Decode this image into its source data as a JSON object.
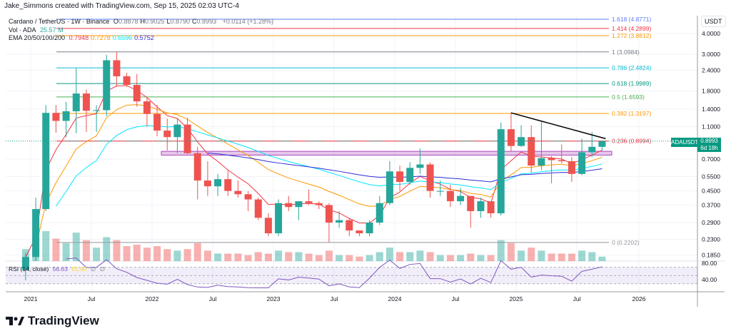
{
  "header": {
    "attribution": "Jake_Simmons created with TradingView.com, Sep 15, 2025 02:03 UTC-4"
  },
  "legend": {
    "symbol": "Cardano / TetherUS · 1W · Binance",
    "ohlc": [
      {
        "k": "O",
        "v": "0.8878"
      },
      {
        "k": "H",
        "v": "0.9025"
      },
      {
        "k": "L",
        "v": "0.8790"
      },
      {
        "k": "C",
        "v": "0.8993"
      }
    ],
    "change": "+0.0114 (+1.28%)",
    "vol_label": "Vol · ADA",
    "vol_value": "25.57 M",
    "ema_label": "EMA 20/50/100/200",
    "ema_values": [
      {
        "v": "0.7948",
        "color": "#f23645"
      },
      {
        "v": "0.7278",
        "color": "#ff9800"
      },
      {
        "v": "0.6596",
        "color": "#00e5ff"
      },
      {
        "v": "0.5752",
        "color": "#2f2fd6"
      }
    ],
    "rsi_label": "RSI (14, close)",
    "rsi_value": "56.63",
    "rsi_ma": "51.40",
    "rsi_na1": "∅",
    "rsi_na2": "∅"
  },
  "price_axis": {
    "currency": "USDT",
    "ticks": [
      "4.0000",
      "3.0000",
      "2.4000",
      "1.8000",
      "1.4000",
      "1.1000",
      "0.7000",
      "0.5500",
      "0.4500",
      "0.3700",
      "0.2900",
      "0.2300",
      "0.1850"
    ]
  },
  "rsi_axis": {
    "ticks": [
      "80.00",
      "40.00"
    ]
  },
  "time_axis": {
    "ticks": [
      "2021",
      "Jul",
      "2022",
      "Jul",
      "2023",
      "Jul",
      "2024",
      "Jul",
      "2025",
      "Jul",
      "2026"
    ]
  },
  "current_price": {
    "symbol": "ADAUSDT",
    "price": "0.8993",
    "countdown": "6d 18h",
    "color": "#089981"
  },
  "fib_levels": [
    {
      "label": "1.618 (4.8771)",
      "price": 4.8771,
      "color": "#5b7cfa"
    },
    {
      "label": "1.414 (4.2899)",
      "price": 4.2899,
      "color": "#f23645"
    },
    {
      "label": "1.272 (3.8812)",
      "price": 3.8812,
      "color": "#ff9800"
    },
    {
      "label": "1 (3.0984)",
      "price": 3.0984,
      "color": "#787b86"
    },
    {
      "label": "0.786 (2.4824)",
      "price": 2.4824,
      "color": "#00bcd4"
    },
    {
      "label": "0.618 (1.9989)",
      "price": 1.9989,
      "color": "#089981"
    },
    {
      "label": "0.5 (1.6593)",
      "price": 1.6593,
      "color": "#4caf50"
    },
    {
      "label": "0.382 (1.3197)",
      "price": 1.3197,
      "color": "#ff9800"
    },
    {
      "label": "0.236 (0.8994)",
      "price": 0.8994,
      "color": "#f23645"
    },
    {
      "label": "0 (0.2202)",
      "price": 0.2202,
      "color": "#9598a1"
    }
  ],
  "support_zone": {
    "low": 0.74,
    "high": 0.78,
    "color": "#ce93d8"
  },
  "trendline": {
    "from": {
      "date": "2024-12",
      "price": 1.33
    },
    "to": {
      "date": "2025-09",
      "price": 0.93
    },
    "color": "#000000"
  },
  "brand": {
    "name": "TradingView"
  },
  "colors": {
    "up": "#26a69a",
    "down": "#ef5350"
  },
  "chart_data": {
    "type": "candlestick",
    "scale": "log",
    "ylim": [
      0.18,
      5.0
    ],
    "grid": true,
    "interval_drawn": "monthly (approx.)",
    "dates": [
      "2020-12",
      "2021-01",
      "2021-02",
      "2021-03",
      "2021-04",
      "2021-05",
      "2021-06",
      "2021-07",
      "2021-08",
      "2021-09",
      "2021-10",
      "2021-11",
      "2021-12",
      "2022-01",
      "2022-02",
      "2022-03",
      "2022-04",
      "2022-05",
      "2022-06",
      "2022-07",
      "2022-08",
      "2022-09",
      "2022-10",
      "2022-11",
      "2022-12",
      "2023-01",
      "2023-02",
      "2023-03",
      "2023-04",
      "2023-05",
      "2023-06",
      "2023-07",
      "2023-08",
      "2023-09",
      "2023-10",
      "2023-11",
      "2023-12",
      "2024-01",
      "2024-02",
      "2024-03",
      "2024-04",
      "2024-05",
      "2024-06",
      "2024-07",
      "2024-08",
      "2024-09",
      "2024-10",
      "2024-11",
      "2024-12",
      "2025-01",
      "2025-02",
      "2025-03",
      "2025-04",
      "2025-05",
      "2025-06",
      "2025-07",
      "2025-08",
      "2025-09"
    ],
    "ohlc": [
      [
        0.15,
        0.19,
        0.13,
        0.18
      ],
      [
        0.18,
        0.41,
        0.17,
        0.35
      ],
      [
        0.35,
        1.48,
        0.34,
        1.33
      ],
      [
        1.33,
        1.48,
        1.01,
        1.19
      ],
      [
        1.19,
        1.55,
        0.95,
        1.36
      ],
      [
        1.36,
        2.47,
        1.0,
        1.74
      ],
      [
        1.74,
        1.84,
        1.02,
        1.37
      ],
      [
        1.37,
        1.48,
        1.02,
        1.38
      ],
      [
        1.38,
        2.97,
        1.27,
        2.76
      ],
      [
        2.76,
        3.1,
        1.91,
        2.21
      ],
      [
        2.21,
        2.32,
        1.91,
        1.96
      ],
      [
        1.96,
        2.28,
        1.45,
        1.56
      ],
      [
        1.56,
        1.66,
        1.1,
        1.31
      ],
      [
        1.31,
        1.49,
        0.96,
        1.04
      ],
      [
        1.04,
        1.23,
        0.79,
        0.95
      ],
      [
        0.95,
        1.24,
        0.76,
        1.13
      ],
      [
        1.13,
        1.24,
        0.75,
        0.76
      ],
      [
        0.76,
        0.83,
        0.4,
        0.52
      ],
      [
        0.52,
        0.68,
        0.42,
        0.48
      ],
      [
        0.48,
        0.57,
        0.42,
        0.53
      ],
      [
        0.53,
        0.6,
        0.42,
        0.45
      ],
      [
        0.45,
        0.52,
        0.41,
        0.43
      ],
      [
        0.43,
        0.45,
        0.34,
        0.4
      ],
      [
        0.4,
        0.41,
        0.3,
        0.31
      ],
      [
        0.31,
        0.33,
        0.24,
        0.25
      ],
      [
        0.25,
        0.4,
        0.24,
        0.38
      ],
      [
        0.38,
        0.42,
        0.34,
        0.36
      ],
      [
        0.36,
        0.39,
        0.3,
        0.39
      ],
      [
        0.39,
        0.46,
        0.37,
        0.38
      ],
      [
        0.38,
        0.39,
        0.35,
        0.37
      ],
      [
        0.37,
        0.38,
        0.22,
        0.29
      ],
      [
        0.29,
        0.34,
        0.27,
        0.3
      ],
      [
        0.3,
        0.31,
        0.24,
        0.26
      ],
      [
        0.26,
        0.26,
        0.24,
        0.25
      ],
      [
        0.25,
        0.3,
        0.24,
        0.29
      ],
      [
        0.29,
        0.42,
        0.28,
        0.38
      ],
      [
        0.38,
        0.68,
        0.37,
        0.59
      ],
      [
        0.59,
        0.64,
        0.45,
        0.51
      ],
      [
        0.51,
        0.67,
        0.49,
        0.62
      ],
      [
        0.62,
        0.81,
        0.57,
        0.65
      ],
      [
        0.65,
        0.67,
        0.41,
        0.45
      ],
      [
        0.45,
        0.52,
        0.42,
        0.45
      ],
      [
        0.45,
        0.49,
        0.36,
        0.39
      ],
      [
        0.39,
        0.47,
        0.37,
        0.42
      ],
      [
        0.42,
        0.42,
        0.27,
        0.34
      ],
      [
        0.34,
        0.41,
        0.31,
        0.39
      ],
      [
        0.39,
        0.39,
        0.31,
        0.33
      ],
      [
        0.33,
        1.16,
        0.32,
        1.06
      ],
      [
        1.06,
        1.33,
        0.78,
        0.84
      ],
      [
        0.84,
        1.12,
        0.83,
        0.95
      ],
      [
        0.95,
        1.12,
        0.58,
        0.64
      ],
      [
        0.64,
        1.17,
        0.6,
        0.71
      ],
      [
        0.71,
        0.73,
        0.5,
        0.69
      ],
      [
        0.69,
        0.86,
        0.66,
        0.68
      ],
      [
        0.68,
        0.72,
        0.51,
        0.57
      ],
      [
        0.57,
        0.93,
        0.56,
        0.77
      ],
      [
        0.77,
        1.02,
        0.72,
        0.83
      ],
      [
        0.83,
        0.9025,
        0.79,
        0.8993
      ]
    ],
    "volume_relative": [
      40,
      70,
      100,
      75,
      60,
      95,
      70,
      45,
      80,
      70,
      50,
      55,
      45,
      50,
      40,
      35,
      40,
      60,
      35,
      25,
      25,
      25,
      20,
      30,
      25,
      35,
      30,
      30,
      25,
      20,
      35,
      20,
      20,
      15,
      20,
      30,
      45,
      30,
      30,
      35,
      30,
      20,
      20,
      20,
      25,
      20,
      20,
      70,
      60,
      35,
      45,
      35,
      25,
      25,
      25,
      35,
      30,
      15
    ]
  }
}
